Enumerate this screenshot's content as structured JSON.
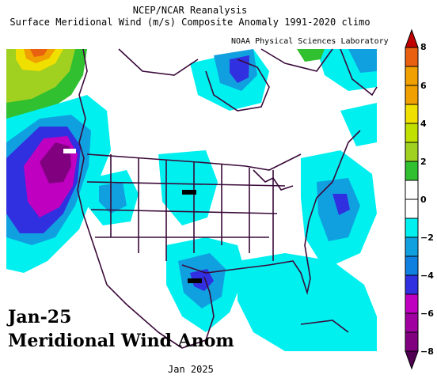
{
  "header": {
    "line1": "NCEP/NCAR Reanalysis",
    "line2": "Surface Meridional Wind (m/s) Composite Anomaly 1991-2020 climo",
    "credit": "NOAA Physical Sciences Laboratory"
  },
  "overlay": {
    "line1": "Jan-25",
    "line2": "Meridional Wind Anom"
  },
  "footer": {
    "period": "Jan 2025"
  },
  "colorbar": {
    "ticks": [
      "8",
      "6",
      "4",
      "2",
      "0",
      "−2",
      "−4",
      "−6",
      "−8"
    ],
    "colors": [
      "#c00000",
      "#e86010",
      "#f0a000",
      "#f0e000",
      "#a0d020",
      "#30c030",
      "#ffffff",
      "#00f0f0",
      "#10a0e0",
      "#3030e0",
      "#c000c0",
      "#800080",
      "#500050"
    ]
  },
  "legend_colors": {
    "strong_positive": "#e06020",
    "positive": "#a0d020",
    "weak_positive": "#30c030",
    "zero": "#ffffff",
    "weak_negative": "#00f0f0",
    "negative": "#10a0e0",
    "strong_negative": "#3030e0",
    "very_strong_negative": "#c000c0",
    "extreme_negative": "#600060"
  }
}
